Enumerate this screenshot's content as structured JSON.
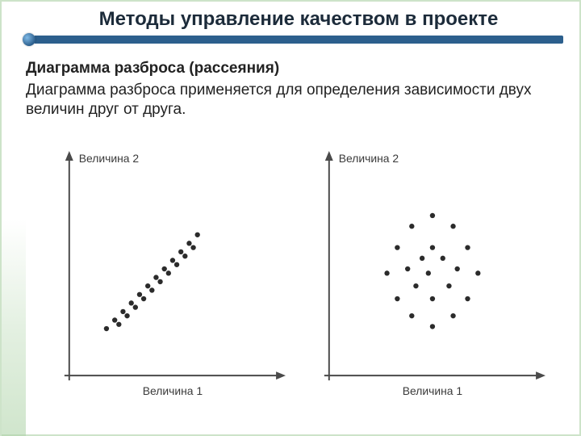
{
  "slide": {
    "title": "Методы управление качеством в проекте",
    "subtitle": "Диаграмма разброса (рассеяния)",
    "description": "Диаграмма разброса применяется для определения зависимости двух величин друг от друга.",
    "accent_color": "#2c5f8d",
    "border_color": "#cde3c9"
  },
  "chart_left": {
    "type": "scatter",
    "x_label": "Величина 1",
    "y_label": "Величина 2",
    "xlim": [
      0,
      100
    ],
    "ylim": [
      0,
      100
    ],
    "axis_color": "#4a4a4a",
    "label_color": "#3a3a3a",
    "label_fontsize": 14,
    "point_color": "#2b2b2b",
    "point_radius": 3.2,
    "background_color": "#ffffff",
    "points": [
      [
        18,
        22
      ],
      [
        22,
        26
      ],
      [
        24,
        24
      ],
      [
        26,
        30
      ],
      [
        28,
        28
      ],
      [
        30,
        34
      ],
      [
        32,
        32
      ],
      [
        34,
        38
      ],
      [
        36,
        36
      ],
      [
        38,
        42
      ],
      [
        40,
        40
      ],
      [
        42,
        46
      ],
      [
        44,
        44
      ],
      [
        46,
        50
      ],
      [
        48,
        48
      ],
      [
        50,
        54
      ],
      [
        52,
        52
      ],
      [
        54,
        58
      ],
      [
        56,
        56
      ],
      [
        58,
        62
      ],
      [
        60,
        60
      ],
      [
        62,
        66
      ]
    ]
  },
  "chart_right": {
    "type": "scatter",
    "x_label": "Величина 1",
    "y_label": "Величина 2",
    "xlim": [
      0,
      100
    ],
    "ylim": [
      0,
      100
    ],
    "axis_color": "#4a4a4a",
    "label_color": "#3a3a3a",
    "label_fontsize": 14,
    "point_color": "#2b2b2b",
    "point_radius": 3.2,
    "background_color": "#ffffff",
    "points": [
      [
        50,
        75
      ],
      [
        40,
        70
      ],
      [
        60,
        70
      ],
      [
        33,
        60
      ],
      [
        67,
        60
      ],
      [
        28,
        48
      ],
      [
        72,
        48
      ],
      [
        33,
        36
      ],
      [
        67,
        36
      ],
      [
        40,
        28
      ],
      [
        60,
        28
      ],
      [
        50,
        23
      ],
      [
        45,
        55
      ],
      [
        55,
        55
      ],
      [
        42,
        42
      ],
      [
        58,
        42
      ],
      [
        50,
        60
      ],
      [
        50,
        36
      ],
      [
        48,
        48
      ],
      [
        38,
        50
      ],
      [
        62,
        50
      ]
    ]
  }
}
